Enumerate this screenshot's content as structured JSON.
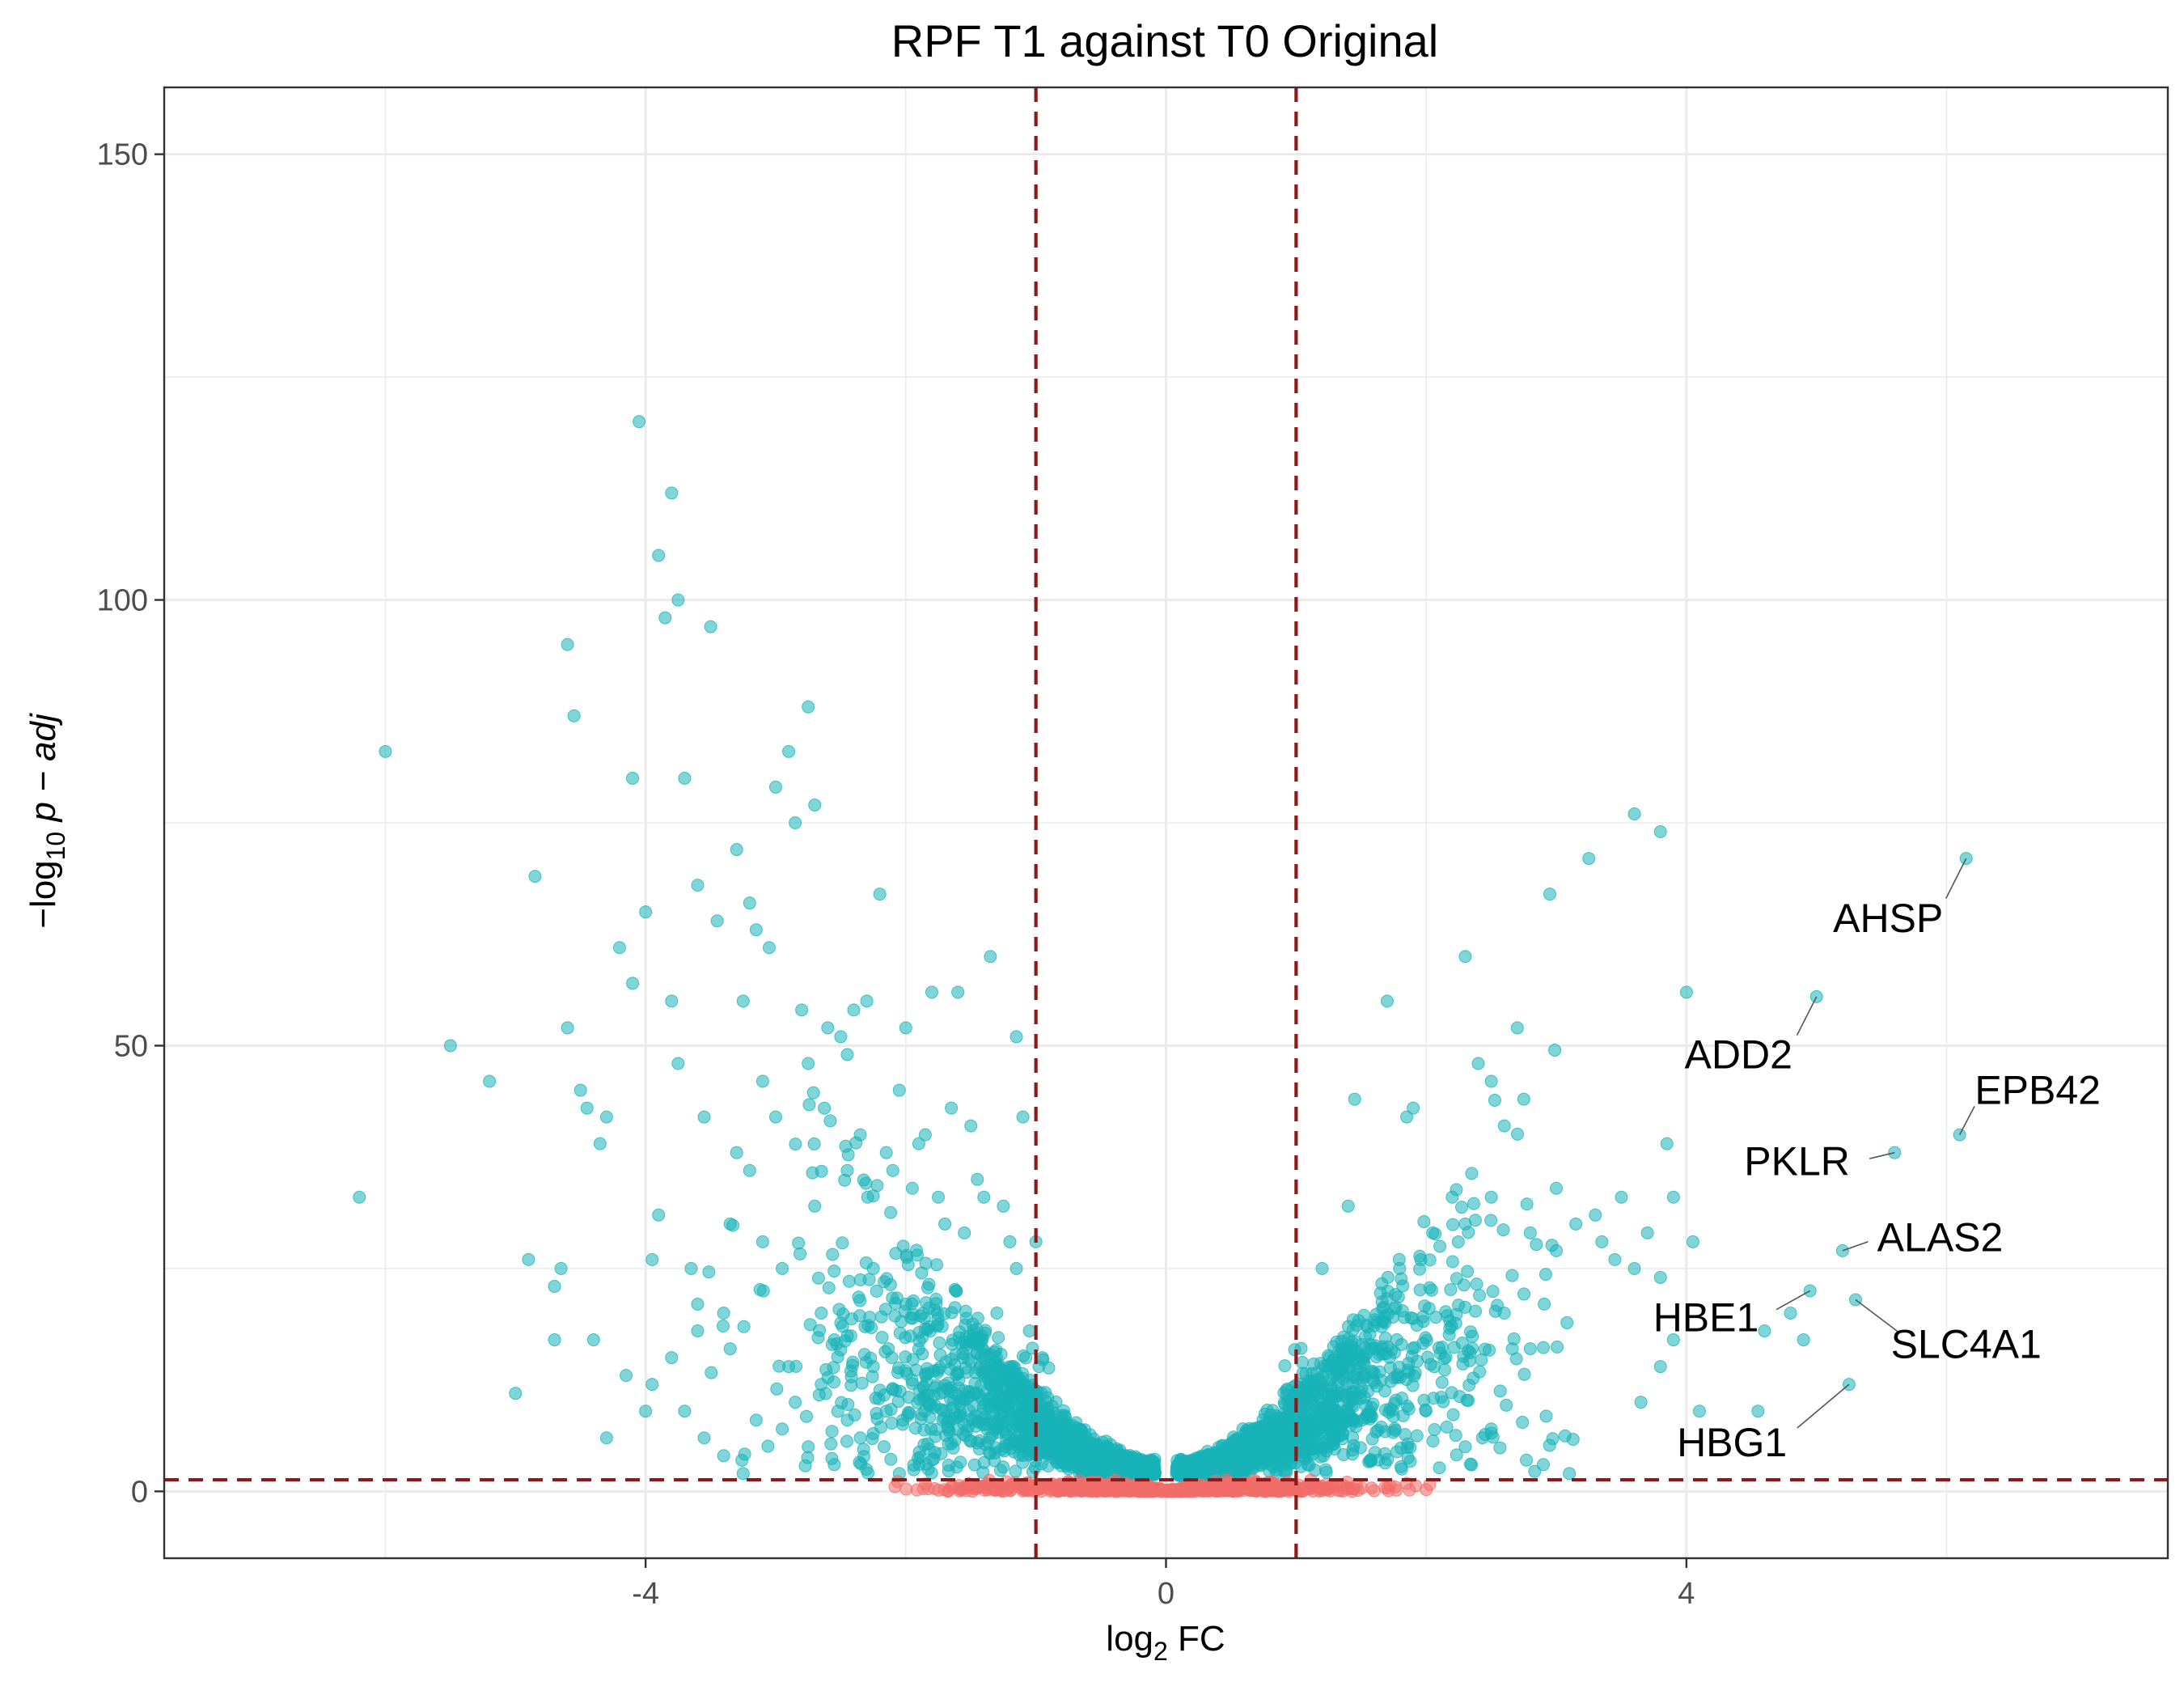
{
  "chart_data": {
    "type": "scatter",
    "title": "RPF T1 against T0 Original",
    "xlabel": {
      "prefix": "log",
      "sub": "2",
      "suffix": " FC"
    },
    "ylabel": {
      "minus": "−",
      "log": "log",
      "sub": "10",
      "suffix": " p − adj"
    },
    "xlim": [
      -7.7,
      7.7
    ],
    "ylim": [
      -7.5,
      157.5
    ],
    "x_ticks": [
      -4,
      0,
      4
    ],
    "x_tick_labels": [
      "-4",
      "0",
      "4"
    ],
    "y_ticks": [
      0,
      50,
      100,
      150
    ],
    "y_tick_labels": [
      "0",
      "50",
      "100",
      "150"
    ],
    "x_minor_grid": [
      -6,
      -2,
      2,
      6
    ],
    "y_minor_grid": [
      25,
      75,
      125
    ],
    "grid": true,
    "thresholds": {
      "log2fc": [
        -1,
        1
      ],
      "neg_log10_padj": 1.3
    },
    "colors": {
      "significant": "#17B3B8",
      "not_significant": "#F26D6A",
      "threshold_line": "#8B1A1A",
      "grid": "#EBEBEB",
      "panel_border": "#333333",
      "label_segment": "#555555"
    },
    "annotations": [
      {
        "gene": "AHSP",
        "x": 6.15,
        "y": 71.0,
        "lx": 5.55,
        "ly": 64.3,
        "anchor": "middle"
      },
      {
        "gene": "ADD2",
        "x": 5.0,
        "y": 55.5,
        "lx": 4.4,
        "ly": 49.0,
        "anchor": "middle"
      },
      {
        "gene": "EPB42",
        "x": 6.1,
        "y": 40.0,
        "lx": 6.7,
        "ly": 45.0,
        "anchor": "middle"
      },
      {
        "gene": "PKLR",
        "x": 5.6,
        "y": 38.0,
        "lx": 4.85,
        "ly": 37.0,
        "anchor": "middle"
      },
      {
        "gene": "ALAS2",
        "x": 5.2,
        "y": 27.0,
        "lx": 5.95,
        "ly": 28.5,
        "anchor": "middle"
      },
      {
        "gene": "SLC4A1",
        "x": 5.3,
        "y": 21.5,
        "lx": 6.15,
        "ly": 16.5,
        "anchor": "middle"
      },
      {
        "gene": "HBE1",
        "x": 4.95,
        "y": 22.5,
        "lx": 4.15,
        "ly": 19.5,
        "anchor": "middle"
      },
      {
        "gene": "HBG1",
        "x": 5.25,
        "y": 12.0,
        "lx": 4.35,
        "ly": 5.5,
        "anchor": "middle"
      }
    ],
    "series": [
      {
        "name": "",
        "color": "#17B3B8",
        "points": [
          [
            -6.2,
            33
          ],
          [
            -6.0,
            83
          ],
          [
            -5.2,
            46
          ],
          [
            -5.5,
            50
          ],
          [
            -5.0,
            11
          ],
          [
            -4.9,
            26
          ],
          [
            -4.85,
            69
          ],
          [
            -4.7,
            23
          ],
          [
            -4.65,
            25
          ],
          [
            -4.6,
            95
          ],
          [
            -4.6,
            52
          ],
          [
            -4.55,
            87
          ],
          [
            -4.5,
            45
          ],
          [
            -4.45,
            43
          ],
          [
            -4.4,
            17
          ],
          [
            -4.35,
            39
          ],
          [
            -4.3,
            42
          ],
          [
            -4.2,
            61
          ],
          [
            -4.15,
            13
          ],
          [
            -4.1,
            80
          ],
          [
            -4.1,
            57
          ],
          [
            -4.05,
            120
          ],
          [
            -4.0,
            65
          ],
          [
            -3.95,
            12
          ],
          [
            -3.95,
            26
          ],
          [
            -3.9,
            105
          ],
          [
            -3.85,
            98
          ],
          [
            -3.8,
            112
          ],
          [
            -3.8,
            55
          ],
          [
            -3.75,
            48
          ],
          [
            -3.75,
            100
          ],
          [
            -3.7,
            80
          ],
          [
            -3.65,
            25
          ],
          [
            -3.6,
            21
          ],
          [
            -3.6,
            68
          ],
          [
            -3.55,
            42
          ],
          [
            -3.5,
            97
          ],
          [
            -3.45,
            64
          ],
          [
            -3.4,
            20
          ],
          [
            -3.35,
            30
          ],
          [
            -3.3,
            38
          ],
          [
            -3.3,
            72
          ],
          [
            -3.25,
            55
          ],
          [
            -3.2,
            66
          ],
          [
            -3.2,
            36
          ],
          [
            -3.15,
            63
          ],
          [
            -3.1,
            46
          ],
          [
            -3.1,
            28
          ],
          [
            -3.05,
            61
          ],
          [
            -3.0,
            79
          ],
          [
            -3.0,
            42
          ],
          [
            -2.95,
            25
          ],
          [
            -2.9,
            14
          ],
          [
            -2.9,
            83
          ],
          [
            -2.85,
            75
          ],
          [
            -2.8,
            54
          ],
          [
            -2.75,
            48
          ],
          [
            -2.75,
            88
          ],
          [
            -2.7,
            77
          ],
          [
            -2.7,
            32
          ],
          [
            -2.65,
            20
          ],
          [
            -2.6,
            52
          ],
          [
            -2.55,
            17
          ],
          [
            -2.5,
            51
          ],
          [
            -2.45,
            49
          ],
          [
            -2.45,
            36
          ],
          [
            -2.4,
            54
          ],
          [
            -2.35,
            40
          ],
          [
            -2.3,
            55
          ],
          [
            -2.25,
            25
          ],
          [
            -2.2,
            67
          ],
          [
            -2.15,
            38
          ],
          [
            -2.1,
            36
          ],
          [
            -2.05,
            45
          ],
          [
            -2.0,
            21
          ],
          [
            -2.0,
            52
          ],
          [
            -1.95,
            34
          ],
          [
            -1.9,
            39
          ],
          [
            -1.85,
            40
          ],
          [
            -1.8,
            56
          ],
          [
            -1.75,
            33
          ],
          [
            -1.7,
            30
          ],
          [
            -1.65,
            43
          ],
          [
            -1.6,
            56
          ],
          [
            -1.55,
            29
          ],
          [
            -1.5,
            41
          ],
          [
            -1.45,
            35
          ],
          [
            -1.4,
            33
          ],
          [
            -1.35,
            60
          ],
          [
            -1.3,
            20
          ],
          [
            -1.25,
            32
          ],
          [
            -1.2,
            28
          ],
          [
            -1.15,
            25
          ],
          [
            -1.1,
            42
          ],
          [
            -1.05,
            18
          ],
          [
            -1.0,
            28
          ],
          [
            -0.95,
            15
          ],
          [
            -1.15,
            51
          ],
          [
            -3.6,
            18
          ],
          [
            -3.9,
            31
          ],
          [
            -3.8,
            15
          ],
          [
            -3.7,
            9
          ],
          [
            -3.55,
            6
          ],
          [
            -3.4,
            4
          ],
          [
            -3.35,
            16
          ],
          [
            -3.25,
            2
          ],
          [
            -3.15,
            8
          ],
          [
            -2.95,
            7
          ],
          [
            -2.85,
            10
          ],
          [
            -2.75,
            5
          ],
          [
            -2.65,
            12
          ],
          [
            -2.55,
            3
          ],
          [
            -2.45,
            8
          ],
          [
            -2.35,
            6
          ],
          [
            -2.25,
            14
          ],
          [
            -2.15,
            9
          ],
          [
            -2.05,
            2
          ],
          [
            -4.3,
            6
          ],
          [
            -4.0,
            9
          ],
          [
            -4.7,
            17
          ]
        ]
      }
    ]
  }
}
